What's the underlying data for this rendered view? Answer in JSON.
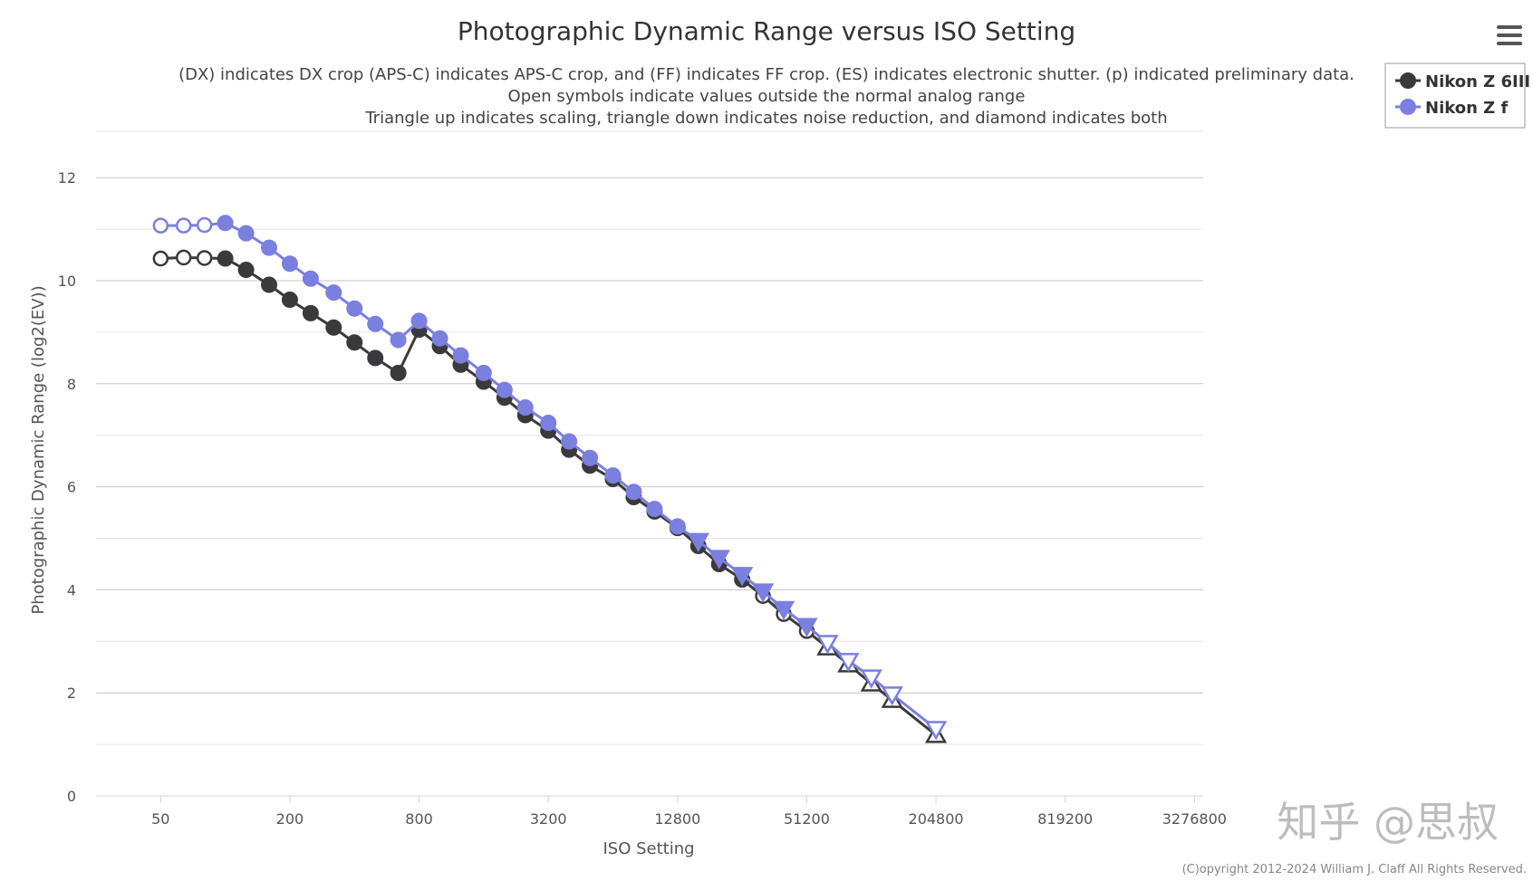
{
  "menu_icon": "hamburger-icon",
  "watermark": "知乎 @思叔",
  "credit": "(C)opyright 2012-2024 William J. Claff All Rights Reserved.",
  "colors": {
    "series1": "#3a3a3c",
    "series2": "#7b7fe0",
    "grid": "#c6c6c6"
  },
  "chart_data": {
    "type": "line",
    "title": "Photographic Dynamic Range versus ISO Setting",
    "subtitle": [
      "(DX) indicates DX crop (APS-C) indicates APS-C crop, and (FF) indicates FF crop. (ES) indicates electronic shutter. (p) indicated preliminary data.",
      "Open symbols indicate values outside the normal analog range",
      "Triangle up indicates scaling, triangle down indicates noise reduction, and diamond indicates both"
    ],
    "xlabel": "ISO Setting",
    "ylabel": "Photographic Dynamic Range (log2(EV))",
    "x_scale": "log2",
    "xlim": [
      25,
      3600000
    ],
    "ylim": [
      0,
      12.9
    ],
    "x_ticks": [
      50,
      200,
      800,
      3200,
      12800,
      51200,
      204800,
      819200,
      3276800
    ],
    "x_tick_labels": [
      "50",
      "200",
      "800",
      "3200",
      "12800",
      "51200",
      "204800",
      "819200",
      "3276800"
    ],
    "y_ticks": [
      0,
      2,
      4,
      6,
      8,
      10,
      12
    ],
    "y_tick_labels": [
      "0",
      "2",
      "4",
      "6",
      "8",
      "10",
      "12"
    ],
    "legend_position": "top-right",
    "series": [
      {
        "name": "Nikon Z 6III",
        "color": "#3a3a3c",
        "points": [
          {
            "iso": 50,
            "dr": 10.43,
            "m": "open"
          },
          {
            "iso": 64,
            "dr": 10.45,
            "m": "open"
          },
          {
            "iso": 80,
            "dr": 10.44,
            "m": "open"
          },
          {
            "iso": 100,
            "dr": 10.43,
            "m": "filled"
          },
          {
            "iso": 125,
            "dr": 10.21,
            "m": "filled"
          },
          {
            "iso": 160,
            "dr": 9.92,
            "m": "filled"
          },
          {
            "iso": 200,
            "dr": 9.63,
            "m": "filled"
          },
          {
            "iso": 250,
            "dr": 9.37,
            "m": "filled"
          },
          {
            "iso": 320,
            "dr": 9.09,
            "m": "filled"
          },
          {
            "iso": 400,
            "dr": 8.8,
            "m": "filled"
          },
          {
            "iso": 500,
            "dr": 8.5,
            "m": "filled"
          },
          {
            "iso": 640,
            "dr": 8.21,
            "m": "filled"
          },
          {
            "iso": 800,
            "dr": 9.05,
            "m": "filled"
          },
          {
            "iso": 1000,
            "dr": 8.73,
            "m": "filled"
          },
          {
            "iso": 1250,
            "dr": 8.37,
            "m": "filled"
          },
          {
            "iso": 1600,
            "dr": 8.04,
            "m": "filled"
          },
          {
            "iso": 2000,
            "dr": 7.73,
            "m": "filled"
          },
          {
            "iso": 2500,
            "dr": 7.39,
            "m": "filled"
          },
          {
            "iso": 3200,
            "dr": 7.09,
            "m": "filled"
          },
          {
            "iso": 4000,
            "dr": 6.72,
            "m": "filled"
          },
          {
            "iso": 5000,
            "dr": 6.41,
            "m": "filled"
          },
          {
            "iso": 6400,
            "dr": 6.15,
            "m": "filled"
          },
          {
            "iso": 8000,
            "dr": 5.8,
            "m": "filled"
          },
          {
            "iso": 10000,
            "dr": 5.52,
            "m": "filled"
          },
          {
            "iso": 12800,
            "dr": 5.2,
            "m": "filled"
          },
          {
            "iso": 16000,
            "dr": 4.85,
            "m": "filled"
          },
          {
            "iso": 20000,
            "dr": 4.5,
            "m": "filled"
          },
          {
            "iso": 25600,
            "dr": 4.2,
            "m": "filled"
          },
          {
            "iso": 32000,
            "dr": 3.88,
            "m": "open"
          },
          {
            "iso": 40000,
            "dr": 3.53,
            "m": "open"
          },
          {
            "iso": 51200,
            "dr": 3.2,
            "m": "open"
          },
          {
            "iso": 64000,
            "dr": 2.88,
            "m": "tri-up"
          },
          {
            "iso": 80000,
            "dr": 2.55,
            "m": "tri-up"
          },
          {
            "iso": 102400,
            "dr": 2.18,
            "m": "tri-up"
          },
          {
            "iso": 128000,
            "dr": 1.86,
            "m": "tri-up"
          },
          {
            "iso": 204800,
            "dr": 1.18,
            "m": "tri-up"
          }
        ]
      },
      {
        "name": "Nikon Z f",
        "color": "#7b7fe0",
        "points": [
          {
            "iso": 50,
            "dr": 11.07,
            "m": "open"
          },
          {
            "iso": 64,
            "dr": 11.07,
            "m": "open"
          },
          {
            "iso": 80,
            "dr": 11.08,
            "m": "open"
          },
          {
            "iso": 100,
            "dr": 11.12,
            "m": "filled"
          },
          {
            "iso": 125,
            "dr": 10.92,
            "m": "filled"
          },
          {
            "iso": 160,
            "dr": 10.64,
            "m": "filled"
          },
          {
            "iso": 200,
            "dr": 10.33,
            "m": "filled"
          },
          {
            "iso": 250,
            "dr": 10.04,
            "m": "filled"
          },
          {
            "iso": 320,
            "dr": 9.77,
            "m": "filled"
          },
          {
            "iso": 400,
            "dr": 9.46,
            "m": "filled"
          },
          {
            "iso": 500,
            "dr": 9.16,
            "m": "filled"
          },
          {
            "iso": 640,
            "dr": 8.85,
            "m": "filled"
          },
          {
            "iso": 800,
            "dr": 9.22,
            "m": "filled"
          },
          {
            "iso": 1000,
            "dr": 8.88,
            "m": "filled"
          },
          {
            "iso": 1250,
            "dr": 8.55,
            "m": "filled"
          },
          {
            "iso": 1600,
            "dr": 8.21,
            "m": "filled"
          },
          {
            "iso": 2000,
            "dr": 7.88,
            "m": "filled"
          },
          {
            "iso": 2500,
            "dr": 7.54,
            "m": "filled"
          },
          {
            "iso": 3200,
            "dr": 7.24,
            "m": "filled"
          },
          {
            "iso": 4000,
            "dr": 6.88,
            "m": "filled"
          },
          {
            "iso": 5000,
            "dr": 6.56,
            "m": "filled"
          },
          {
            "iso": 6400,
            "dr": 6.22,
            "m": "filled"
          },
          {
            "iso": 8000,
            "dr": 5.9,
            "m": "filled"
          },
          {
            "iso": 10000,
            "dr": 5.57,
            "m": "filled"
          },
          {
            "iso": 12800,
            "dr": 5.23,
            "m": "filled"
          },
          {
            "iso": 16000,
            "dr": 4.95,
            "m": "tri-down"
          },
          {
            "iso": 20000,
            "dr": 4.62,
            "m": "tri-down"
          },
          {
            "iso": 25600,
            "dr": 4.29,
            "m": "tri-down"
          },
          {
            "iso": 32000,
            "dr": 3.97,
            "m": "tri-down"
          },
          {
            "iso": 40000,
            "dr": 3.63,
            "m": "tri-down"
          },
          {
            "iso": 51200,
            "dr": 3.3,
            "m": "tri-down"
          },
          {
            "iso": 64000,
            "dr": 2.97,
            "m": "tri-down-open"
          },
          {
            "iso": 80000,
            "dr": 2.62,
            "m": "tri-down-open"
          },
          {
            "iso": 102400,
            "dr": 2.3,
            "m": "tri-down-open"
          },
          {
            "iso": 128000,
            "dr": 1.97,
            "m": "tri-down-open"
          },
          {
            "iso": 204800,
            "dr": 1.3,
            "m": "tri-down-open"
          }
        ]
      }
    ]
  }
}
